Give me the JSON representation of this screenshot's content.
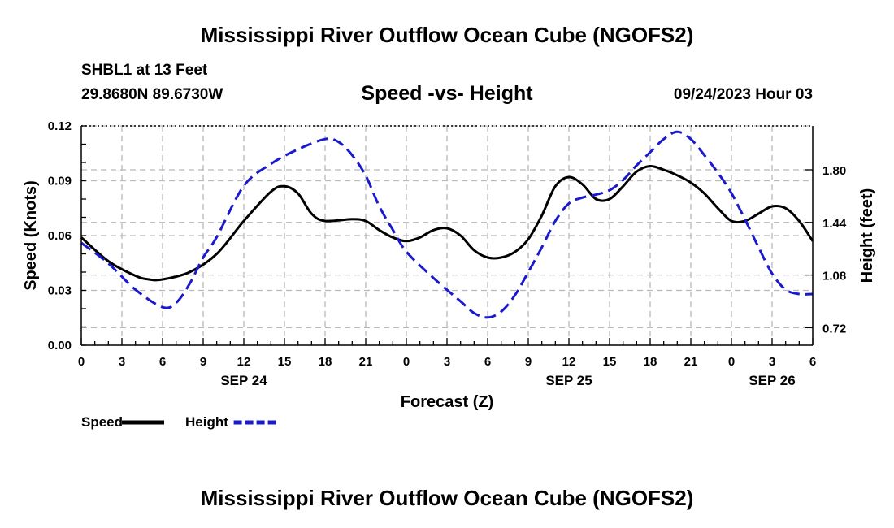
{
  "header": {
    "title": "Mississippi River Outflow Ocean Cube (NGOFS2)",
    "station": "SHBL1 at 13 Feet",
    "coordinates": "29.8680N  89.6730W",
    "subtitle": "Speed -vs- Height",
    "timestamp": "09/24/2023 Hour 03"
  },
  "footer": {
    "title": "Mississippi River Outflow Ocean Cube (NGOFS2)"
  },
  "chart_data": {
    "type": "line",
    "title": "Speed -vs- Height",
    "xlabel": "Forecast (Z)",
    "ylabel_left": "Speed (Knots)",
    "ylabel_right": "Height (feet)",
    "x_range": [
      0,
      54
    ],
    "x_ticks": [
      0,
      3,
      6,
      9,
      12,
      15,
      18,
      21,
      24,
      27,
      30,
      33,
      36,
      39,
      42,
      45,
      48,
      51,
      54
    ],
    "x_tick_labels": [
      "0",
      "3",
      "6",
      "9",
      "12",
      "15",
      "18",
      "21",
      "0",
      "3",
      "6",
      "9",
      "12",
      "15",
      "18",
      "21",
      "0",
      "3",
      "6"
    ],
    "date_labels": [
      {
        "x": 12,
        "label": "SEP 24"
      },
      {
        "x": 36,
        "label": "SEP 25"
      },
      {
        "x": 51,
        "label": "SEP 26"
      }
    ],
    "y_left": {
      "range": [
        0,
        0.12
      ],
      "ticks": [
        0,
        0.03,
        0.06,
        0.09,
        0.12
      ],
      "tick_labels": [
        "0.00",
        "0.03",
        "0.06",
        "0.09",
        "0.12"
      ]
    },
    "y_right": {
      "range": [
        0.6,
        2.1
      ],
      "ticks": [
        0.72,
        1.08,
        1.44,
        1.8
      ],
      "tick_labels": [
        "0.72",
        "1.08",
        "1.44",
        "1.80"
      ]
    },
    "legend": [
      {
        "name": "Speed",
        "color": "#000000",
        "style": "solid"
      },
      {
        "name": "Height",
        "color": "#1a1acc",
        "style": "dashed"
      }
    ],
    "series": [
      {
        "name": "Speed",
        "axis": "left",
        "color": "#000000",
        "style": "solid",
        "x": [
          0,
          2,
          4,
          5,
          6,
          8,
          10,
          12,
          14,
          15,
          16,
          17,
          18,
          20,
          21,
          22,
          23,
          24,
          25,
          26,
          27,
          28,
          29,
          30,
          31,
          32,
          33,
          34,
          35,
          36,
          37,
          38,
          39,
          40,
          41,
          42,
          43,
          44,
          45,
          46,
          47,
          48,
          49,
          50,
          51,
          52,
          53,
          54
        ],
        "values": [
          0.059,
          0.046,
          0.038,
          0.036,
          0.036,
          0.04,
          0.05,
          0.068,
          0.084,
          0.087,
          0.083,
          0.072,
          0.068,
          0.069,
          0.068,
          0.063,
          0.059,
          0.057,
          0.059,
          0.063,
          0.064,
          0.06,
          0.052,
          0.048,
          0.048,
          0.051,
          0.058,
          0.071,
          0.087,
          0.092,
          0.088,
          0.08,
          0.08,
          0.087,
          0.095,
          0.098,
          0.096,
          0.093,
          0.089,
          0.083,
          0.075,
          0.068,
          0.068,
          0.072,
          0.076,
          0.075,
          0.068,
          0.057
        ]
      },
      {
        "name": "Height",
        "axis": "right",
        "color": "#1a1acc",
        "style": "dashed",
        "x": [
          0,
          2,
          4,
          6,
          7,
          8,
          9,
          10,
          12,
          14,
          16,
          18,
          19,
          20,
          21,
          22,
          23,
          24,
          26,
          28,
          29,
          30,
          31,
          32,
          33,
          34,
          35,
          36,
          37,
          38,
          39,
          40,
          41,
          42,
          43,
          44,
          45,
          46,
          47,
          48,
          49,
          50,
          51,
          52,
          53,
          54
        ],
        "values": [
          1.3,
          1.16,
          0.98,
          0.86,
          0.89,
          1.02,
          1.2,
          1.34,
          1.69,
          1.84,
          1.94,
          2.01,
          1.99,
          1.9,
          1.76,
          1.55,
          1.39,
          1.24,
          1.06,
          0.9,
          0.82,
          0.79,
          0.83,
          0.94,
          1.1,
          1.27,
          1.45,
          1.57,
          1.61,
          1.63,
          1.66,
          1.73,
          1.83,
          1.92,
          2.01,
          2.06,
          2.01,
          1.9,
          1.78,
          1.64,
          1.46,
          1.27,
          1.09,
          0.98,
          0.95,
          0.95
        ]
      }
    ]
  }
}
